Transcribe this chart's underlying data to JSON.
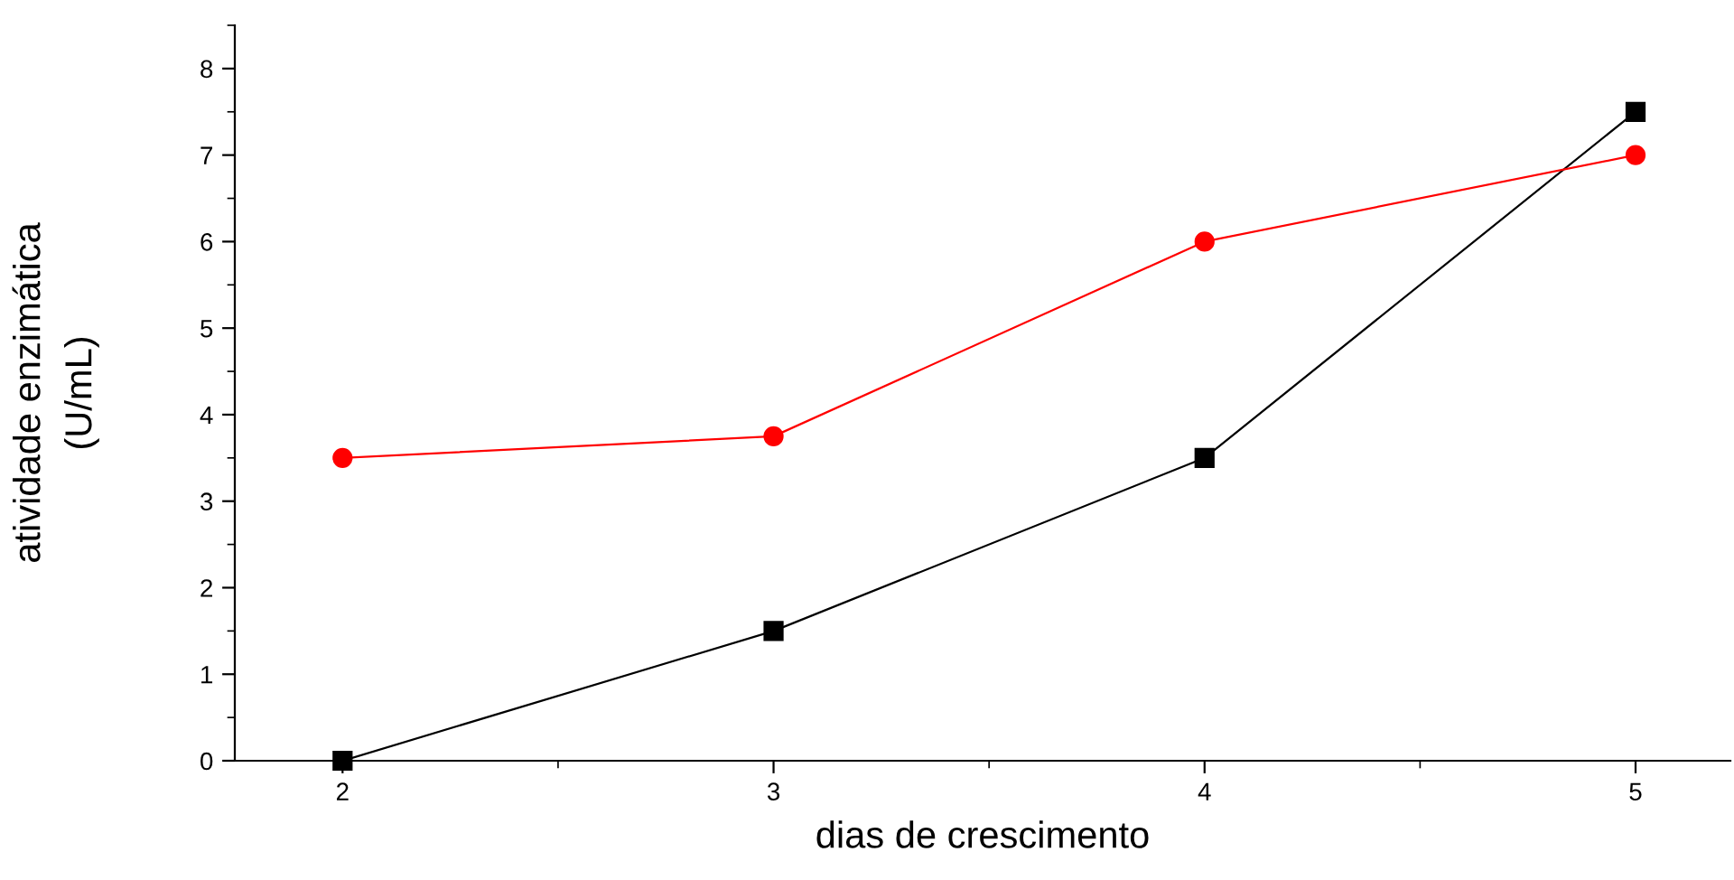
{
  "chart_data": {
    "type": "line",
    "xlabel": "dias de crescimento",
    "ylabel": "atividade enzimática\n(U/mL)",
    "x": [
      2,
      3,
      4,
      5
    ],
    "series": [
      {
        "color": "#000000",
        "marker": "square",
        "values": [
          0,
          1.5,
          3.5,
          7.5
        ]
      },
      {
        "color": "#ff0000",
        "marker": "circle",
        "values": [
          3.5,
          3.75,
          6,
          7
        ]
      }
    ],
    "xlim": [
      1.75,
      5.22
    ],
    "xticks": [
      2,
      3,
      4,
      5
    ],
    "ylim": [
      0,
      8.5
    ],
    "yticks": [
      0,
      1,
      2,
      3,
      4,
      5,
      6,
      7,
      8
    ],
    "grid": false,
    "legend": false,
    "line_style": "solid"
  }
}
